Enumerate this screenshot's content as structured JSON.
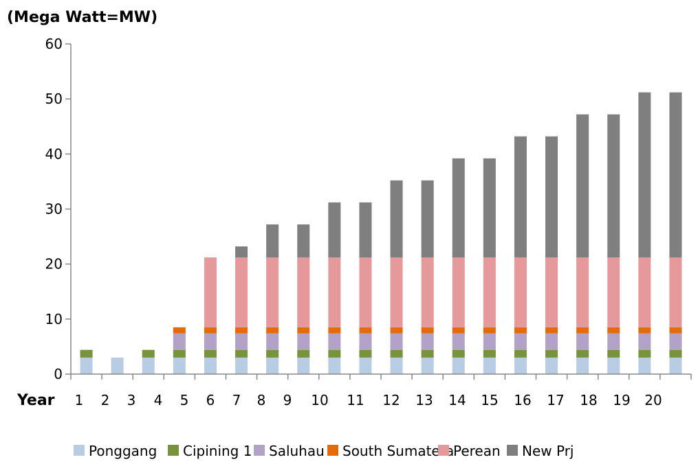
{
  "chart_data": {
    "type": "bar",
    "stacked": true,
    "title": "(Mega Watt=MW)",
    "xlabel": "Year",
    "ylabel": "",
    "ylim": [
      0,
      60
    ],
    "yticks": [
      0,
      10,
      20,
      30,
      40,
      50,
      60
    ],
    "grid": false,
    "legend_position": "bottom",
    "categories": [
      "1",
      "2",
      "3",
      "4",
      "5",
      "6",
      "7",
      "8",
      "9",
      "10",
      "11",
      "12",
      "13",
      "14",
      "15",
      "16",
      "17",
      "18",
      "19",
      "20"
    ],
    "series": [
      {
        "name": "Ponggang",
        "color": "#b8cce4",
        "values": [
          3,
          3,
          3,
          3,
          3,
          3,
          3,
          3,
          3,
          3,
          3,
          3,
          3,
          3,
          3,
          3,
          3,
          3,
          3,
          3
        ]
      },
      {
        "name": "Cipining 1",
        "color": "#77933c",
        "values": [
          1.4,
          0,
          1.4,
          1.4,
          1.4,
          1.4,
          1.4,
          1.4,
          1.4,
          1.4,
          1.4,
          1.4,
          1.4,
          1.4,
          1.4,
          1.4,
          1.4,
          1.4,
          1.4,
          1.4
        ]
      },
      {
        "name": "Saluhau",
        "color": "#b3a2c7",
        "values": [
          0,
          0,
          0,
          3,
          3,
          3,
          3,
          3,
          3,
          3,
          3,
          3,
          3,
          3,
          3,
          3,
          3,
          3,
          3,
          3
        ]
      },
      {
        "name": "South Sumatera",
        "color": "#e36c09",
        "values": [
          0,
          0,
          0,
          1.1,
          1.1,
          1.1,
          1.1,
          1.1,
          1.1,
          1.1,
          1.1,
          1.1,
          1.1,
          1.1,
          1.1,
          1.1,
          1.1,
          1.1,
          1.1,
          1.1
        ]
      },
      {
        "name": "Perean",
        "color": "#e6999a",
        "values": [
          0,
          0,
          0,
          0,
          12.7,
          12.7,
          12.7,
          12.7,
          12.7,
          12.7,
          12.7,
          12.7,
          12.7,
          12.7,
          12.7,
          12.7,
          12.7,
          12.7,
          12.7,
          12.7
        ]
      },
      {
        "name": "New Prj",
        "color": "#7f7f7f",
        "values": [
          0,
          0,
          0,
          0,
          0,
          2,
          6,
          6,
          10,
          10,
          14,
          14,
          18,
          18,
          22,
          22,
          26,
          26,
          30,
          30
        ]
      }
    ]
  }
}
